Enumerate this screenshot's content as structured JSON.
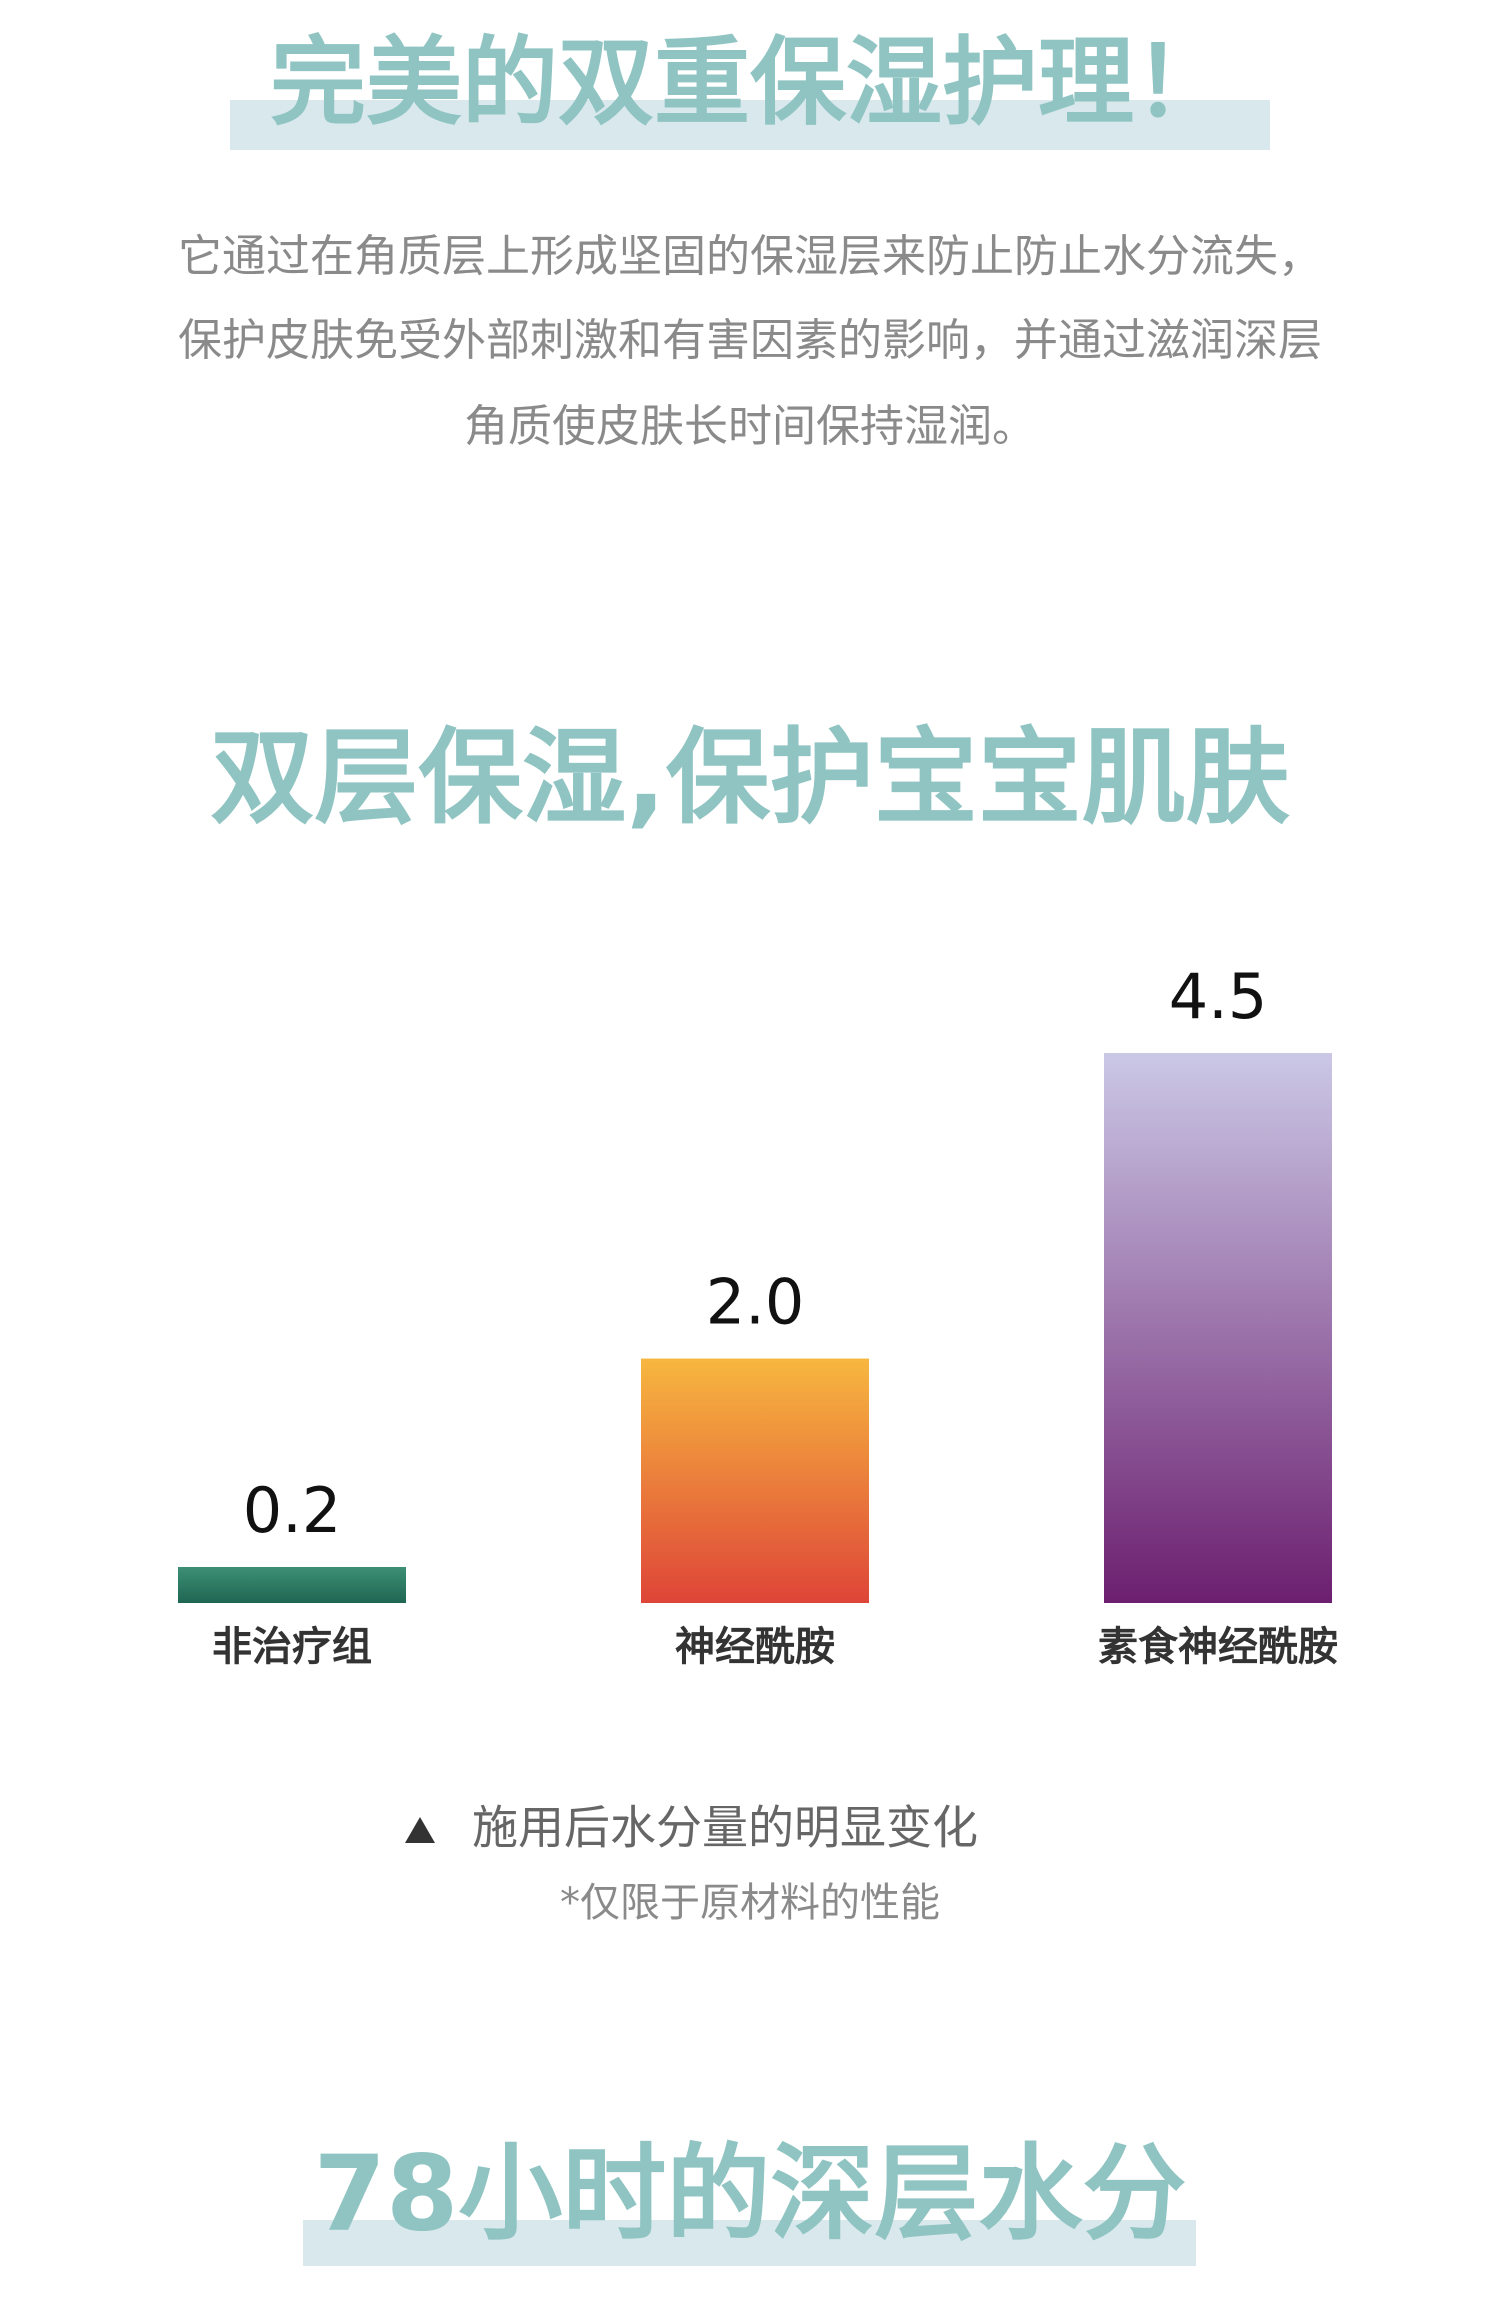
{
  "header": {
    "title": "完美的双重保湿护理！",
    "paragraph": [
      "它通过在角质层上形成坚固的保湿层来防止防止水分流失，",
      "保护皮肤免受外部刺激和有害因素的影响，并通过滋润深层",
      "角质使皮肤长时间保持湿润。"
    ]
  },
  "chart_data": {
    "type": "bar",
    "title": "双层保湿,保护宝宝肌肤",
    "categories": [
      "非治疗组",
      "神经酰胺",
      "素食神经酰胺"
    ],
    "values": [
      0.2,
      2.0,
      4.5
    ],
    "value_labels": [
      "0.2",
      "2.0",
      "4.5"
    ],
    "colors": [
      [
        "#3d8f76",
        "#1f6652"
      ],
      [
        "#f7b73f",
        "#de4538"
      ],
      [
        "#cbc8e6",
        "#6c1f6f"
      ]
    ],
    "caption": "施用后水分量的明显变化",
    "note": "*仅限于原材料的性能"
  },
  "footer": {
    "title": "78小时的深层水分"
  }
}
